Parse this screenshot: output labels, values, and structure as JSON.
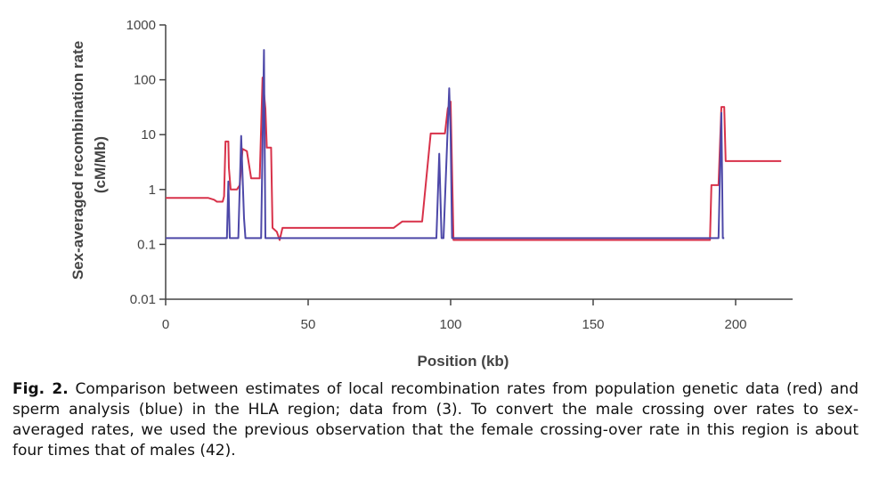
{
  "chart_data": {
    "type": "line",
    "xlabel": "Position (kb)",
    "ylabel_line1": "Sex-averaged recombination rate",
    "ylabel_line2": "(cM/Mb)",
    "y_scale": "log",
    "xlim": [
      0,
      220
    ],
    "ylim": [
      0.01,
      1000
    ],
    "x_ticks": [
      0,
      50,
      100,
      150,
      200
    ],
    "y_ticks": [
      {
        "value": 0.01,
        "label": "0.01"
      },
      {
        "value": 0.1,
        "label": "0.1"
      },
      {
        "value": 1,
        "label": "1"
      },
      {
        "value": 10,
        "label": "10"
      },
      {
        "value": 100,
        "label": "100"
      },
      {
        "value": 1000,
        "label": "1000"
      }
    ],
    "grid": false,
    "legend": "none",
    "series": [
      {
        "color": "#d8324a",
        "points": [
          [
            0,
            0.7
          ],
          [
            15,
            0.7
          ],
          [
            17,
            0.65
          ],
          [
            18,
            0.6
          ],
          [
            20,
            0.6
          ],
          [
            20.5,
            0.75
          ],
          [
            21,
            7.5
          ],
          [
            22,
            7.5
          ],
          [
            22.2,
            2.5
          ],
          [
            22.8,
            1.0
          ],
          [
            25,
            1.0
          ],
          [
            26,
            1.2
          ],
          [
            27,
            5.5
          ],
          [
            28.5,
            5.0
          ],
          [
            30,
            1.6
          ],
          [
            33,
            1.6
          ],
          [
            34,
            110
          ],
          [
            35,
            30
          ],
          [
            35.5,
            5.8
          ],
          [
            37,
            5.8
          ],
          [
            37.5,
            0.2
          ],
          [
            39,
            0.17
          ],
          [
            40,
            0.12
          ],
          [
            41,
            0.2
          ],
          [
            50,
            0.2
          ],
          [
            80,
            0.2
          ],
          [
            83,
            0.26
          ],
          [
            90,
            0.26
          ],
          [
            93,
            10.5
          ],
          [
            98,
            10.5
          ],
          [
            99,
            30
          ],
          [
            100,
            40
          ],
          [
            101,
            0.12
          ],
          [
            150,
            0.12
          ],
          [
            191,
            0.12
          ],
          [
            191.5,
            1.2
          ],
          [
            194,
            1.2
          ],
          [
            195,
            32
          ],
          [
            196,
            32
          ],
          [
            196.5,
            3.3
          ],
          [
            200,
            3.3
          ],
          [
            216,
            3.3
          ]
        ]
      },
      {
        "color": "#4d48a8",
        "points": [
          [
            0,
            0.13
          ],
          [
            21.5,
            0.13
          ],
          [
            22,
            1.4
          ],
          [
            22.5,
            0.13
          ],
          [
            25.5,
            0.13
          ],
          [
            26.5,
            9.5
          ],
          [
            27.5,
            0.3
          ],
          [
            28,
            0.13
          ],
          [
            33.5,
            0.13
          ],
          [
            34.5,
            350
          ],
          [
            35,
            0.13
          ],
          [
            95,
            0.13
          ],
          [
            96,
            4.5
          ],
          [
            96.8,
            0.13
          ],
          [
            97.5,
            0.13
          ],
          [
            99.5,
            70
          ],
          [
            100,
            10
          ],
          [
            100.5,
            0.13
          ],
          [
            194,
            0.13
          ],
          [
            195,
            25
          ],
          [
            195.5,
            0.13
          ],
          [
            196,
            0.13
          ]
        ]
      }
    ]
  },
  "caption": {
    "label": "Fig. 2.",
    "text": "Comparison between estimates of local recombination rates from population genetic data (red) and sperm analysis (blue) in the HLA region; data from (3). To convert the male crossing over rates to sex-averaged rates, we used the previous observation that the female crossing-over rate in this region is about four times that of males (42)."
  }
}
